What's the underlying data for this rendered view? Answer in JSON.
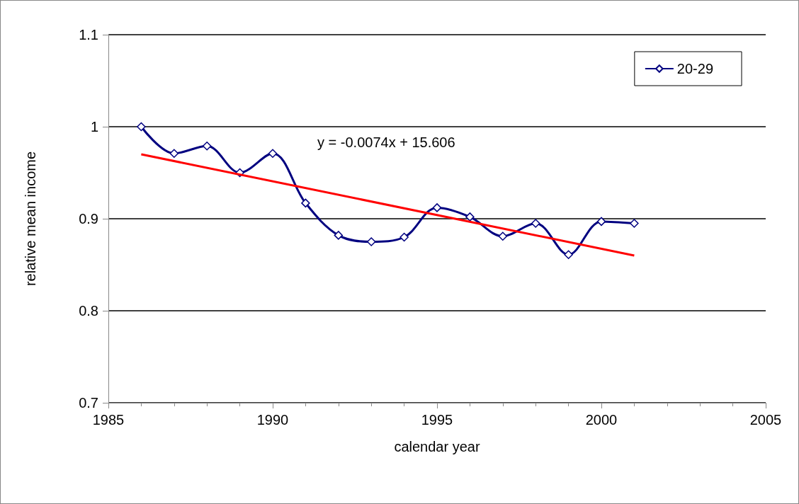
{
  "chart_data": {
    "type": "line",
    "xlabel": "calendar year",
    "ylabel": "relative mean income",
    "x": [
      1986,
      1987,
      1988,
      1989,
      1990,
      1991,
      1992,
      1993,
      1994,
      1995,
      1996,
      1997,
      1998,
      1999,
      2000,
      2001
    ],
    "series": [
      {
        "name": "20-29",
        "color": "#000080",
        "marker": "diamond",
        "values": [
          1.0,
          0.971,
          0.979,
          0.95,
          0.971,
          0.917,
          0.882,
          0.875,
          0.88,
          0.912,
          0.902,
          0.881,
          0.895,
          0.861,
          0.897,
          0.895
        ]
      },
      {
        "type": "line",
        "color": "#ff0000",
        "marker": "none",
        "x": [
          1986,
          2001
        ],
        "values": [
          0.97,
          0.86
        ]
      }
    ],
    "annotations": [
      "y = -0.0074x + 15.606"
    ],
    "xlim": [
      1985,
      2005
    ],
    "xticks": [
      1985,
      1990,
      1995,
      2000,
      2005
    ],
    "ylim": [
      0.7,
      1.1
    ],
    "yticks": [
      0.7,
      0.8,
      0.9,
      1,
      1.1
    ],
    "grid": "y",
    "legend": "top right"
  }
}
